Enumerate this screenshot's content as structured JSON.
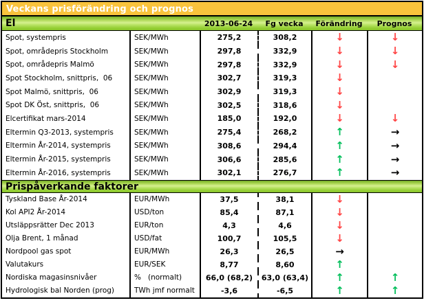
{
  "title": "Veckans prisförändring och prognos",
  "header": {
    "date_col": "2013-06-24",
    "prev_col": "Fg vecka",
    "change_col": "Förändring",
    "forecast_col": "Prognos"
  },
  "colors": {
    "title_bg": "#F9C33C",
    "section_green": "#8AC52D",
    "arrow_down": "#FF4545",
    "arrow_up": "#00BE5A",
    "arrow_right": "#000000"
  },
  "arrows": {
    "glyphs": {
      "down": "↓",
      "up": "↑",
      "right": "→"
    },
    "colors": {
      "down": "#FF4545",
      "up": "#00BE5A",
      "right": "#000000"
    }
  },
  "sections": [
    {
      "title": "El",
      "rows": [
        {
          "name": "Spot, systempris",
          "unit": "SEK/MWh",
          "current": "275,2",
          "previous": "308,2",
          "change": "down",
          "forecast": "down"
        },
        {
          "name": "Spot, områdepris Stockholm",
          "unit": "SEK/MWh",
          "current": "297,8",
          "previous": "332,9",
          "change": "down",
          "forecast": "down"
        },
        {
          "name": "Spot, områdepris Malmö",
          "unit": "SEK/MWh",
          "current": "297,8",
          "previous": "332,9",
          "change": "down",
          "forecast": "down"
        },
        {
          "name": "Spot Stockholm, snittpris,  06",
          "unit": "SEK/MWh",
          "current": "302,7",
          "previous": "319,3",
          "change": "down",
          "forecast": ""
        },
        {
          "name": "Spot Malmö, snittpris,  06",
          "unit": "SEK/MWh",
          "current": "302,9",
          "previous": "319,3",
          "change": "down",
          "forecast": ""
        },
        {
          "name": "Spot DK Öst, snittpris,  06",
          "unit": "SEK/MWh",
          "current": "302,5",
          "previous": "318,6",
          "change": "down",
          "forecast": ""
        },
        {
          "name": "Elcertifikat mars-2014",
          "unit": "SEK/MWh",
          "current": "185,0",
          "previous": "192,0",
          "change": "down",
          "forecast": "down"
        },
        {
          "name": "Eltermin Q3-2013, systempris",
          "unit": "SEK/MWh",
          "current": "275,4",
          "previous": "268,2",
          "change": "up",
          "forecast": "right"
        },
        {
          "name": "Eltermin År-2014, systempris",
          "unit": "SEK/MWh",
          "current": "308,6",
          "previous": "294,4",
          "change": "up",
          "forecast": "right"
        },
        {
          "name": "Eltermin År-2015, systempris",
          "unit": "SEK/MWh",
          "current": "306,6",
          "previous": "285,6",
          "change": "up",
          "forecast": "right"
        },
        {
          "name": "Eltermin År-2016, systempris",
          "unit": "SEK/MWh",
          "current": "302,1",
          "previous": "276,7",
          "change": "up",
          "forecast": "right"
        }
      ]
    },
    {
      "title": "Prispåverkande faktorer",
      "rows": [
        {
          "name": "Tyskland Base År-2014",
          "unit": "EUR/MWh",
          "current": "37,5",
          "previous": "38,1",
          "change": "down",
          "forecast": ""
        },
        {
          "name": "Kol API2 År-2014",
          "unit": "USD/ton",
          "current": "85,4",
          "previous": "87,1",
          "change": "down",
          "forecast": ""
        },
        {
          "name": "Utsläppsrätter Dec 2013",
          "unit": "EUR/ton",
          "current": "4,3",
          "previous": "4,6",
          "change": "down",
          "forecast": ""
        },
        {
          "name": "Olja Brent, 1 månad",
          "unit": "USD/fat",
          "current": "100,7",
          "previous": "105,5",
          "change": "down",
          "forecast": ""
        },
        {
          "name": "Nordpool gas spot",
          "unit": "EUR/MWh",
          "current": "26,3",
          "previous": "26,5",
          "change": "right",
          "forecast": ""
        },
        {
          "name": "Valutakurs",
          "unit": "EUR/SEK",
          "current": "8,77",
          "previous": "8,60",
          "change": "up",
          "forecast": ""
        },
        {
          "name": "Nordiska magasinsnivåer",
          "unit": "%   (normalt)",
          "current": "66,0 (68,2)",
          "previous": "63,0 (63,4)",
          "change": "up",
          "forecast": "up"
        },
        {
          "name": "Hydrologisk bal Norden (prog)",
          "unit": "TWh jmf normalt",
          "current": "-3,6",
          "previous": "-6,5",
          "change": "up",
          "forecast": "up"
        }
      ]
    }
  ]
}
